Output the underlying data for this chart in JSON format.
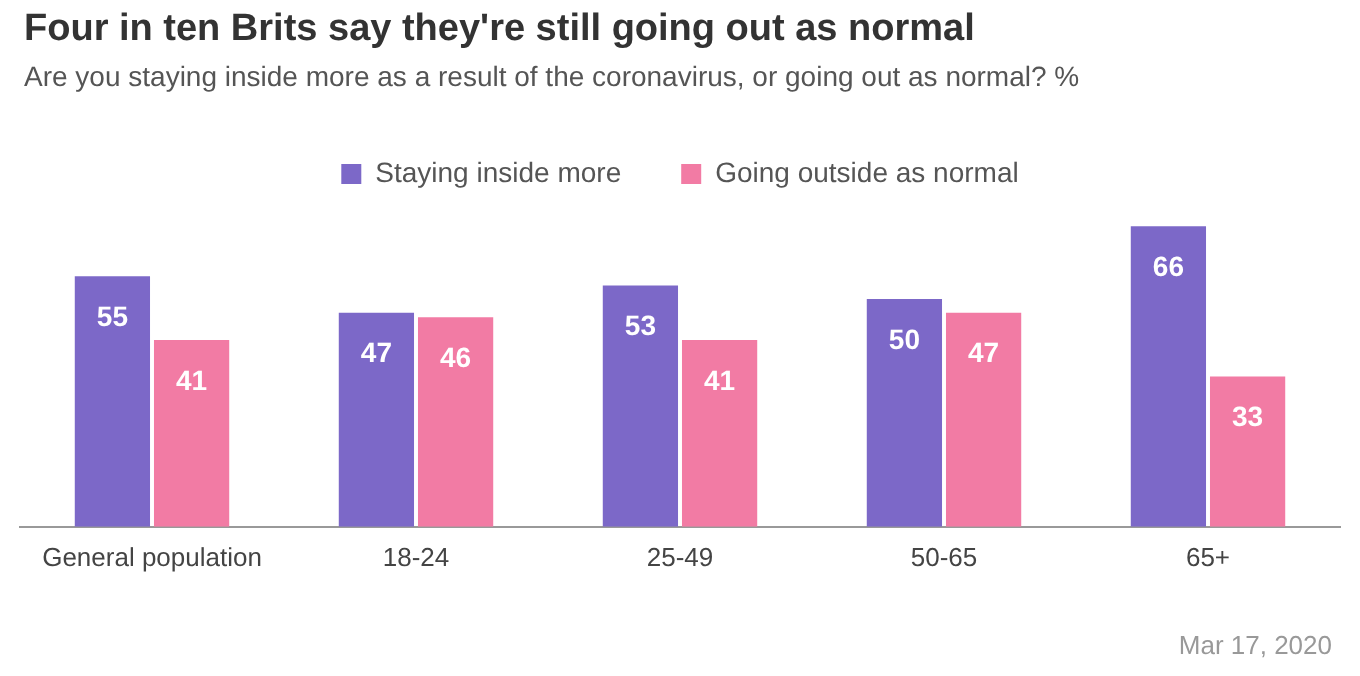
{
  "chart_data": {
    "type": "bar",
    "title": "Four in ten Brits say they're still going out as normal",
    "subtitle": "Are you staying inside more as a result of the coronavirus, or going out as normal? %",
    "categories": [
      "General population",
      "18-24",
      "25-49",
      "50-65",
      "65+"
    ],
    "series": [
      {
        "name": "Staying inside more",
        "color": "#7c68c8",
        "values": [
          55,
          47,
          53,
          50,
          66
        ]
      },
      {
        "name": "Going outside as normal",
        "color": "#f27ba4",
        "values": [
          41,
          46,
          41,
          47,
          33
        ]
      }
    ],
    "data_labels": true,
    "grid": false,
    "legend": "top",
    "annotations": [
      "Mar 17, 2020"
    ]
  }
}
